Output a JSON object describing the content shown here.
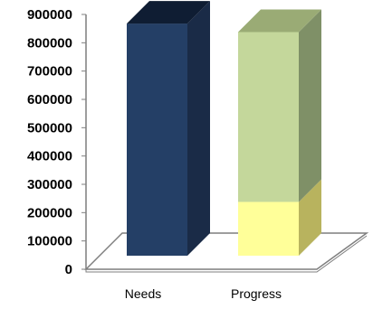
{
  "chart_data": {
    "type": "bar",
    "style": "3d-stacked-column",
    "categories": [
      "Needs",
      "Progress"
    ],
    "series": [
      {
        "values": [
          820000,
          190000
        ],
        "colors": [
          "#243F66",
          "#FFFF99"
        ]
      },
      {
        "values": [
          0,
          600000
        ],
        "colors": [
          "#243F66",
          "#C4D79B"
        ]
      }
    ],
    "ylim": [
      0,
      900000
    ],
    "yticks": [
      "0",
      "100000",
      "200000",
      "300000",
      "400000",
      "500000",
      "600000",
      "700000",
      "800000",
      "900000"
    ],
    "grid": false,
    "legend": "none",
    "colors": {
      "needs_front": "#243F66",
      "needs_side": "#1A2B47",
      "needs_top": "#0F1D33",
      "progress_lower_front": "#FFFF99",
      "progress_lower_side": "#B8B35E",
      "progress_upper_front": "#C4D79B",
      "progress_upper_side": "#7F9067",
      "progress_upper_top": "#9AAB75",
      "floor": "#FFFFFF",
      "floor_edge": "#7F7F7F",
      "axis": "#7F7F7F"
    }
  }
}
